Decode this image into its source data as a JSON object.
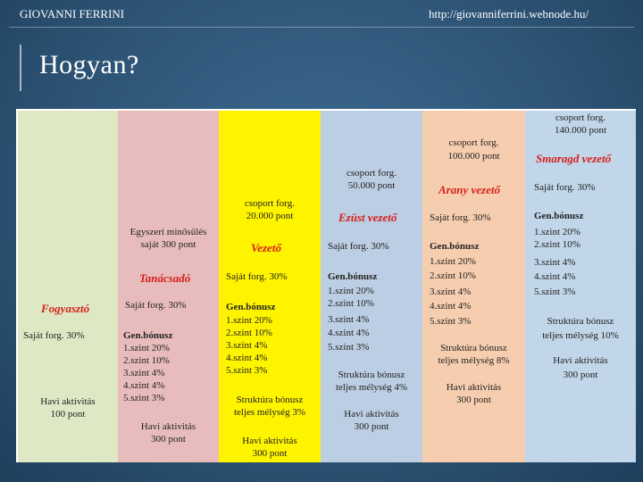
{
  "header": {
    "author": "GIOVANNI FERRINI",
    "url": "http://giovanniferrini.webnode.hu/"
  },
  "title": "Hogyan?",
  "columns": {
    "fogyaszto": {
      "level": "Fogyasztó",
      "own": "Saját forg. 30%",
      "activity": "Havi aktivitás",
      "activity_pts": "100 pont"
    },
    "tanacsado": {
      "req1": "Egyszeri minősülés",
      "req2": "saját 300 pont",
      "level": "Tanácsadó",
      "own": "Saját forg. 30%",
      "bonus_title": "Gen.bónusz",
      "bonus": [
        "1.szint 20%",
        "2.szint 10%",
        "3.szint 4%",
        "4.szint 4%",
        "5.szint 3%"
      ],
      "activity": "Havi aktivitás",
      "activity_pts": "300 pont"
    },
    "vezeto": {
      "req1": "csoport forg.",
      "req2": "20.000 pont",
      "level": "Vezető",
      "own": "Saját forg. 30%",
      "bonus_title": "Gen.bónusz",
      "bonus": [
        "1.szint 20%",
        "2.szint 10%",
        "3.szint 4%",
        "4.szint 4%",
        "5.szint 3%"
      ],
      "struct1": "Struktúra bónusz",
      "struct2": "teljes mélység 3%",
      "activity": "Havi aktivitás",
      "activity_pts": "300 pont"
    },
    "ezust": {
      "req1": "csoport forg.",
      "req2": "50.000 pont",
      "level": "Ezüst vezető",
      "own": "Saját forg. 30%",
      "bonus_title": "Gen.bónusz",
      "bonus": [
        "1.szint 20%",
        "2.szint 10%",
        "3.szint 4%",
        "4.szint 4%",
        "5.szint 3%"
      ],
      "struct1": "Struktúra bónusz",
      "struct2": "teljes mélység 4%",
      "activity": "Havi aktivitás",
      "activity_pts": "300 pont"
    },
    "arany": {
      "req1": "csoport forg.",
      "req2": "100.000 pont",
      "level": "Arany vezető",
      "own": "Saját forg. 30%",
      "bonus_title": "Gen.bónusz",
      "bonus": [
        "1.szint 20%",
        "2.szint 10%",
        "3.szint 4%",
        "4.szint 4%",
        "5.szint 3%"
      ],
      "struct1": "Struktúra bónusz",
      "struct2": "teljes mélység 8%",
      "activity": "Havi aktivitás",
      "activity_pts": "300 pont"
    },
    "smaragd": {
      "req1": "csoport forg.",
      "req2": "140.000 pont",
      "level": "Smaragd vezető",
      "own": "Saját forg. 30%",
      "bonus_title": "Gen.bónusz",
      "bonus": [
        "1.szint 20%",
        "2.szint 10%",
        "3.szint 4%",
        "4.szint 4%",
        "5.szint 3%"
      ],
      "struct1": "Struktúra bónusz",
      "struct2": "teljes mélység 10%",
      "activity": "Havi aktivitás",
      "activity_pts": "300 pont"
    }
  }
}
